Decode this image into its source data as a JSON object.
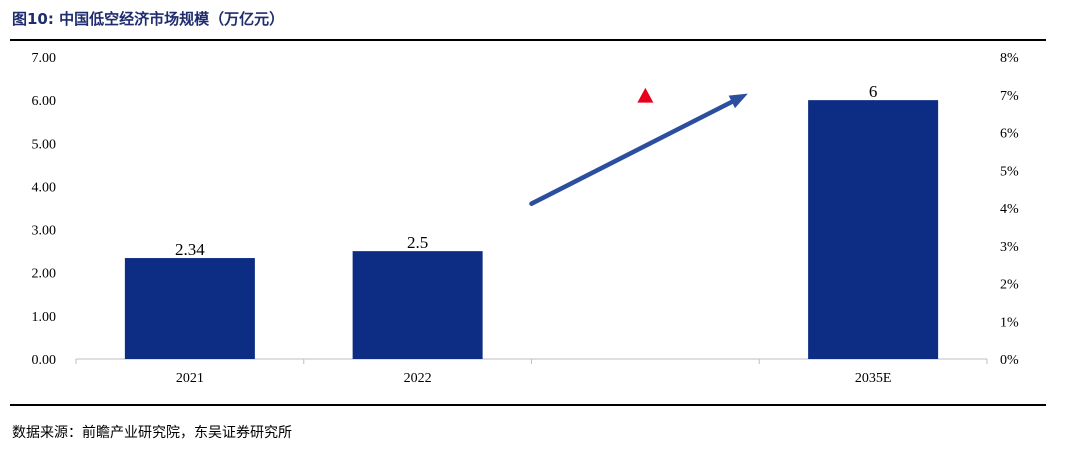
{
  "figure": {
    "title": "图10:  中国低空经济市场规模（万亿元）",
    "source": "数据来源：前瞻产业研究院，东吴证券研究所"
  },
  "colors": {
    "bar": "#0c2d83",
    "arrow": "#2b4f9e",
    "marker": "#e8001c",
    "title": "#1f2d6e"
  },
  "chart_data": {
    "type": "bar",
    "title": "",
    "xlabel": "",
    "ylabel": "",
    "categories": [
      "2021",
      "2022",
      "",
      "2035E"
    ],
    "values": [
      2.34,
      2.5,
      null,
      6
    ],
    "data_labels": [
      "2.34",
      "2.5",
      "",
      "6"
    ],
    "ylim": [
      0,
      7
    ],
    "y_ticks": [
      "0.00",
      "1.00",
      "2.00",
      "3.00",
      "4.00",
      "5.00",
      "6.00",
      "7.00"
    ],
    "y2lim": [
      0,
      0.08
    ],
    "y2_ticks": [
      "0%",
      "1%",
      "2%",
      "3%",
      "4%",
      "5%",
      "6%",
      "7%",
      "8%"
    ],
    "grid": false,
    "legend": "none",
    "annotations": [
      {
        "type": "arrow",
        "from_category_index": 2.0,
        "from_value": 3.6,
        "to_category_index": 2.95,
        "to_value": 6.15,
        "note_icon": "growth-arrow"
      },
      {
        "type": "marker",
        "category_index": 2.5,
        "value": 6.1,
        "note_icon": "red-triangle-marker"
      }
    ]
  }
}
